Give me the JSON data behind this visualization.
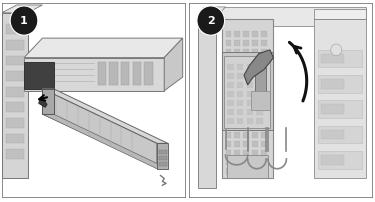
{
  "fig_width": 3.75,
  "fig_height": 2.02,
  "dpi": 100,
  "background_color": "#ffffff",
  "border_color": "#777777",
  "panel_border": "#777777",
  "step_circle_color": "#1a1a1a",
  "step_text_color": "#ffffff",
  "gray_lightest": "#f0f0f0",
  "gray_light": "#e0e0e0",
  "gray_mid_light": "#d0d0d0",
  "gray_mid": "#c0c0c0",
  "gray_dark": "#a0a0a0",
  "gray_darker": "#888888",
  "gray_very_dark": "#606060",
  "black_arrow": "#111111"
}
